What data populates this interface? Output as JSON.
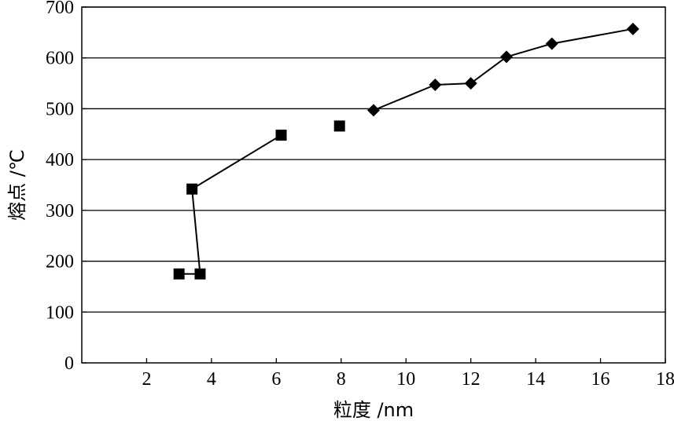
{
  "chart_data": {
    "type": "line",
    "xlabel": "粒度 /nm",
    "ylabel": "熔点 /℃",
    "xlim": [
      0,
      18
    ],
    "ylim": [
      0,
      700
    ],
    "x_ticks": [
      2,
      4,
      6,
      8,
      10,
      12,
      14,
      16,
      18
    ],
    "y_ticks": [
      0,
      100,
      200,
      300,
      400,
      500,
      600,
      700
    ],
    "grid": "horizontal",
    "series": [
      {
        "marker": "square",
        "points": [
          {
            "x": 3.0,
            "y": 175
          },
          {
            "x": 3.65,
            "y": 175
          },
          {
            "x": 3.4,
            "y": 342
          },
          {
            "x": 6.15,
            "y": 448
          },
          {
            "x": 7.95,
            "y": 466
          }
        ],
        "connected": [
          [
            0,
            1
          ],
          [
            1,
            2
          ],
          [
            2,
            3
          ]
        ]
      },
      {
        "marker": "diamond",
        "points": [
          {
            "x": 9.0,
            "y": 497
          },
          {
            "x": 10.9,
            "y": 547
          },
          {
            "x": 12.0,
            "y": 550
          },
          {
            "x": 13.1,
            "y": 602
          },
          {
            "x": 14.5,
            "y": 628
          },
          {
            "x": 17.0,
            "y": 657
          }
        ],
        "connected": [
          [
            0,
            1
          ],
          [
            1,
            2
          ],
          [
            2,
            3
          ],
          [
            3,
            4
          ],
          [
            4,
            5
          ]
        ]
      }
    ]
  }
}
